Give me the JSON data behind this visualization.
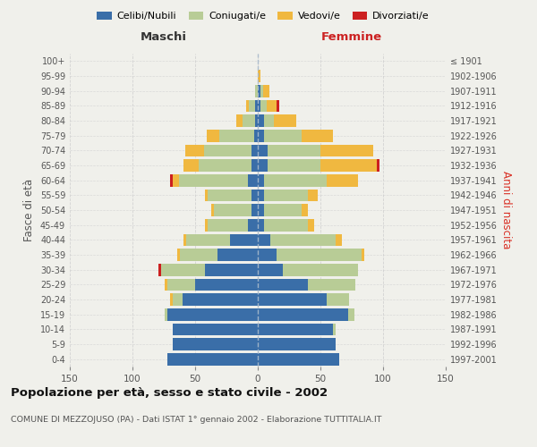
{
  "age_groups": [
    "0-4",
    "5-9",
    "10-14",
    "15-19",
    "20-24",
    "25-29",
    "30-34",
    "35-39",
    "40-44",
    "45-49",
    "50-54",
    "55-59",
    "60-64",
    "65-69",
    "70-74",
    "75-79",
    "80-84",
    "85-89",
    "90-94",
    "95-99",
    "100+"
  ],
  "birth_years": [
    "1997-2001",
    "1992-1996",
    "1987-1991",
    "1982-1986",
    "1977-1981",
    "1972-1976",
    "1967-1971",
    "1962-1966",
    "1957-1961",
    "1952-1956",
    "1947-1951",
    "1942-1946",
    "1937-1941",
    "1932-1936",
    "1927-1931",
    "1922-1926",
    "1917-1921",
    "1912-1916",
    "1907-1911",
    "1902-1906",
    "≤ 1901"
  ],
  "male_celibe": [
    72,
    68,
    68,
    72,
    60,
    50,
    42,
    32,
    22,
    8,
    5,
    5,
    8,
    5,
    5,
    3,
    2,
    2,
    0,
    0,
    0
  ],
  "male_coniugato": [
    0,
    0,
    0,
    2,
    8,
    22,
    35,
    30,
    35,
    32,
    30,
    35,
    55,
    42,
    38,
    28,
    10,
    5,
    2,
    0,
    0
  ],
  "male_vedovo": [
    0,
    0,
    0,
    0,
    2,
    2,
    0,
    2,
    2,
    2,
    2,
    2,
    5,
    12,
    15,
    10,
    5,
    2,
    0,
    0,
    0
  ],
  "male_divorziato": [
    0,
    0,
    0,
    0,
    0,
    0,
    2,
    0,
    0,
    0,
    0,
    0,
    2,
    0,
    0,
    0,
    0,
    0,
    0,
    0,
    0
  ],
  "female_celibe": [
    65,
    62,
    60,
    72,
    55,
    40,
    20,
    15,
    10,
    5,
    5,
    5,
    5,
    8,
    8,
    5,
    5,
    2,
    2,
    0,
    0
  ],
  "female_coniugato": [
    0,
    0,
    2,
    5,
    18,
    38,
    60,
    68,
    52,
    35,
    30,
    35,
    50,
    42,
    42,
    30,
    8,
    5,
    2,
    0,
    0
  ],
  "female_vedovo": [
    0,
    0,
    0,
    0,
    0,
    0,
    0,
    2,
    5,
    5,
    5,
    8,
    25,
    45,
    42,
    25,
    18,
    8,
    5,
    2,
    0
  ],
  "female_divorziato": [
    0,
    0,
    0,
    0,
    0,
    0,
    0,
    0,
    0,
    0,
    0,
    0,
    0,
    2,
    0,
    0,
    0,
    2,
    0,
    0,
    0
  ],
  "colors": {
    "celibe": "#3a6ea8",
    "coniugato": "#b8cc96",
    "vedovo": "#f0b840",
    "divorziato": "#cc2020"
  },
  "xlim": 150,
  "title": "Popolazione per età, sesso e stato civile - 2002",
  "subtitle": "COMUNE DI MEZZOJUSO (PA) - Dati ISTAT 1° gennaio 2002 - Elaborazione TUTTITALIA.IT",
  "ylabel_left": "Fasce di età",
  "ylabel_right": "Anni di nascita",
  "xlabel_male": "Maschi",
  "xlabel_female": "Femmine",
  "bg_color": "#f0f0eb",
  "grid_color": "#cccccc"
}
